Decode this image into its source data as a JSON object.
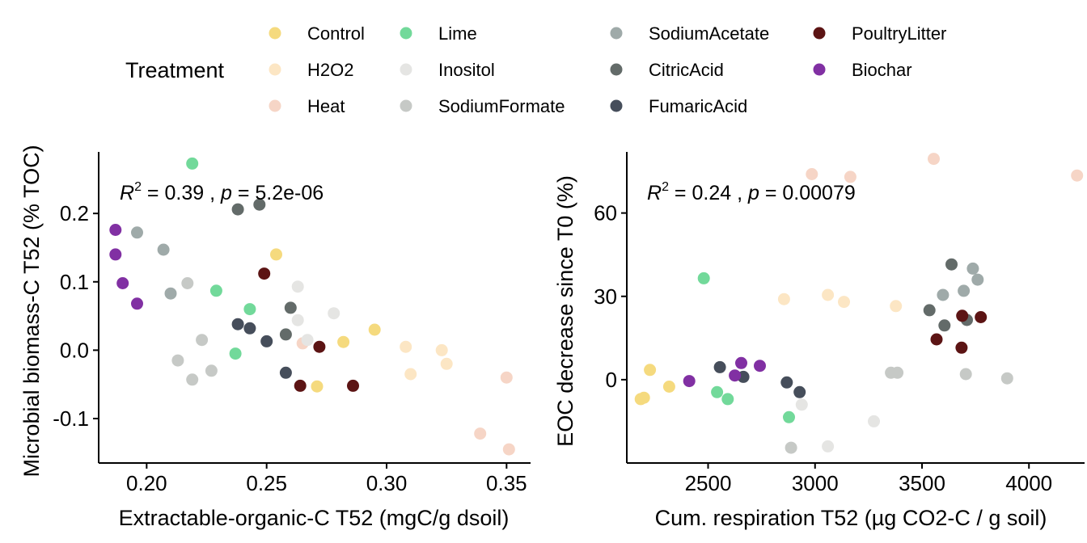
{
  "legend": {
    "title": "Treatment",
    "entries": [
      {
        "name": "Control",
        "color": "#F5DA7E"
      },
      {
        "name": "H2O2",
        "color": "#FCE6C4"
      },
      {
        "name": "Heat",
        "color": "#F6D5C6"
      },
      {
        "name": "Lime",
        "color": "#72D99A"
      },
      {
        "name": "Inositol",
        "color": "#E5E5E3"
      },
      {
        "name": "SodiumFormate",
        "color": "#C6C9C6"
      },
      {
        "name": "SodiumAcetate",
        "color": "#9FAAA9"
      },
      {
        "name": "CitricAcid",
        "color": "#636B69"
      },
      {
        "name": "FumaricAcid",
        "color": "#464E5B"
      },
      {
        "name": "PoultryLitter",
        "color": "#5C1414"
      },
      {
        "name": "Biochar",
        "color": "#8130A3"
      }
    ]
  },
  "chart_data": [
    {
      "type": "scatter",
      "xlabel": "Extractable-organic-C T52 (mgC/g dsoil)",
      "ylabel": "Microbial biomass-C T52 (% TOC)",
      "xlim": [
        0.18,
        0.36
      ],
      "ylim": [
        -0.165,
        0.29
      ],
      "xticks": [
        0.2,
        0.25,
        0.3,
        0.35
      ],
      "xtick_labels": [
        "0.20",
        "0.25",
        "0.30",
        "0.35"
      ],
      "yticks": [
        -0.1,
        0.0,
        0.1,
        0.2
      ],
      "ytick_labels": [
        "-0.1",
        "0.0",
        "0.1",
        "0.2"
      ],
      "annotation": {
        "r2": "0.39",
        "p": "5.2e-06"
      },
      "series": [
        {
          "name": "Control",
          "points": [
            [
              0.254,
              0.14
            ],
            [
              0.282,
              0.012
            ],
            [
              0.295,
              0.03
            ],
            [
              0.271,
              -0.053
            ]
          ]
        },
        {
          "name": "H2O2",
          "points": [
            [
              0.308,
              0.005
            ],
            [
              0.31,
              -0.035
            ],
            [
              0.323,
              0.0
            ],
            [
              0.325,
              -0.02
            ]
          ]
        },
        {
          "name": "Heat",
          "points": [
            [
              0.265,
              0.01
            ],
            [
              0.339,
              -0.122
            ],
            [
              0.35,
              -0.04
            ],
            [
              0.351,
              -0.145
            ]
          ]
        },
        {
          "name": "Lime",
          "points": [
            [
              0.219,
              0.273
            ],
            [
              0.229,
              0.087
            ],
            [
              0.237,
              -0.005
            ],
            [
              0.243,
              0.06
            ]
          ]
        },
        {
          "name": "Inositol",
          "points": [
            [
              0.263,
              0.093
            ],
            [
              0.263,
              0.044
            ],
            [
              0.267,
              0.015
            ],
            [
              0.278,
              0.054
            ]
          ]
        },
        {
          "name": "SodiumFormate",
          "points": [
            [
              0.213,
              -0.015
            ],
            [
              0.217,
              0.098
            ],
            [
              0.219,
              -0.043
            ],
            [
              0.223,
              0.015
            ],
            [
              0.227,
              -0.03
            ]
          ]
        },
        {
          "name": "SodiumAcetate",
          "points": [
            [
              0.196,
              0.172
            ],
            [
              0.207,
              0.147
            ],
            [
              0.21,
              0.083
            ]
          ]
        },
        {
          "name": "CitricAcid",
          "points": [
            [
              0.238,
              0.206
            ],
            [
              0.247,
              0.213
            ],
            [
              0.258,
              0.023
            ],
            [
              0.26,
              0.062
            ]
          ]
        },
        {
          "name": "FumaricAcid",
          "points": [
            [
              0.238,
              0.038
            ],
            [
              0.243,
              0.032
            ],
            [
              0.25,
              0.013
            ],
            [
              0.258,
              -0.033
            ]
          ]
        },
        {
          "name": "PoultryLitter",
          "points": [
            [
              0.249,
              0.112
            ],
            [
              0.264,
              -0.052
            ],
            [
              0.272,
              0.005
            ],
            [
              0.286,
              -0.052
            ]
          ]
        },
        {
          "name": "Biochar",
          "points": [
            [
              0.187,
              0.176
            ],
            [
              0.187,
              0.14
            ],
            [
              0.19,
              0.098
            ],
            [
              0.196,
              0.068
            ]
          ]
        }
      ]
    },
    {
      "type": "scatter",
      "xlabel": "Cum. respiration T52 (µg CO2-C / g soil)",
      "ylabel": "EOC decrease since T0 (%)",
      "xlim": [
        2120,
        4260
      ],
      "ylim": [
        -30,
        82
      ],
      "xticks": [
        2500,
        3000,
        3500,
        4000
      ],
      "xtick_labels": [
        "2500",
        "3000",
        "3500",
        "4000"
      ],
      "yticks": [
        0,
        30,
        60
      ],
      "ytick_labels": [
        "0",
        "30",
        "60"
      ],
      "annotation": {
        "r2": "0.24",
        "p": "0.00079"
      },
      "series": [
        {
          "name": "Control",
          "points": [
            [
              2185,
              -7
            ],
            [
              2200,
              -6.5
            ],
            [
              2228,
              3.5
            ],
            [
              2318,
              -2.5
            ]
          ]
        },
        {
          "name": "H2O2",
          "points": [
            [
              2855,
              29
            ],
            [
              3060,
              30.5
            ],
            [
              3135,
              28
            ],
            [
              3378,
              26.5
            ]
          ]
        },
        {
          "name": "Heat",
          "points": [
            [
              2985,
              74
            ],
            [
              3165,
              73
            ],
            [
              3555,
              79.5
            ],
            [
              4225,
              73.5
            ]
          ]
        },
        {
          "name": "Lime",
          "points": [
            [
              2480,
              36.5
            ],
            [
              2542,
              -4.5
            ],
            [
              2592,
              -7
            ],
            [
              2878,
              -13.5
            ]
          ]
        },
        {
          "name": "Inositol",
          "points": [
            [
              2938,
              -9
            ],
            [
              3060,
              -24
            ],
            [
              3275,
              -15
            ]
          ]
        },
        {
          "name": "SodiumFormate",
          "points": [
            [
              2888,
              -24.5
            ],
            [
              3355,
              2.5
            ],
            [
              3385,
              2.5
            ],
            [
              3705,
              2
            ],
            [
              3898,
              0.5
            ]
          ]
        },
        {
          "name": "SodiumAcetate",
          "points": [
            [
              3598,
              30.5
            ],
            [
              3695,
              32
            ],
            [
              3738,
              40
            ],
            [
              3760,
              36
            ]
          ]
        },
        {
          "name": "CitricAcid",
          "points": [
            [
              3535,
              25
            ],
            [
              3605,
              19.5
            ],
            [
              3638,
              41.5
            ],
            [
              3710,
              21.5
            ]
          ]
        },
        {
          "name": "FumaricAcid",
          "points": [
            [
              2555,
              4.5
            ],
            [
              2868,
              -1
            ],
            [
              2928,
              -4.5
            ],
            [
              2665,
              1
            ]
          ]
        },
        {
          "name": "PoultryLitter",
          "points": [
            [
              3568,
              14.5
            ],
            [
              3685,
              11.5
            ],
            [
              3688,
              23
            ],
            [
              3775,
              22.5
            ]
          ]
        },
        {
          "name": "Biochar",
          "points": [
            [
              2412,
              -0.5
            ],
            [
              2625,
              1.5
            ],
            [
              2655,
              6
            ],
            [
              2742,
              5
            ]
          ]
        }
      ]
    }
  ]
}
